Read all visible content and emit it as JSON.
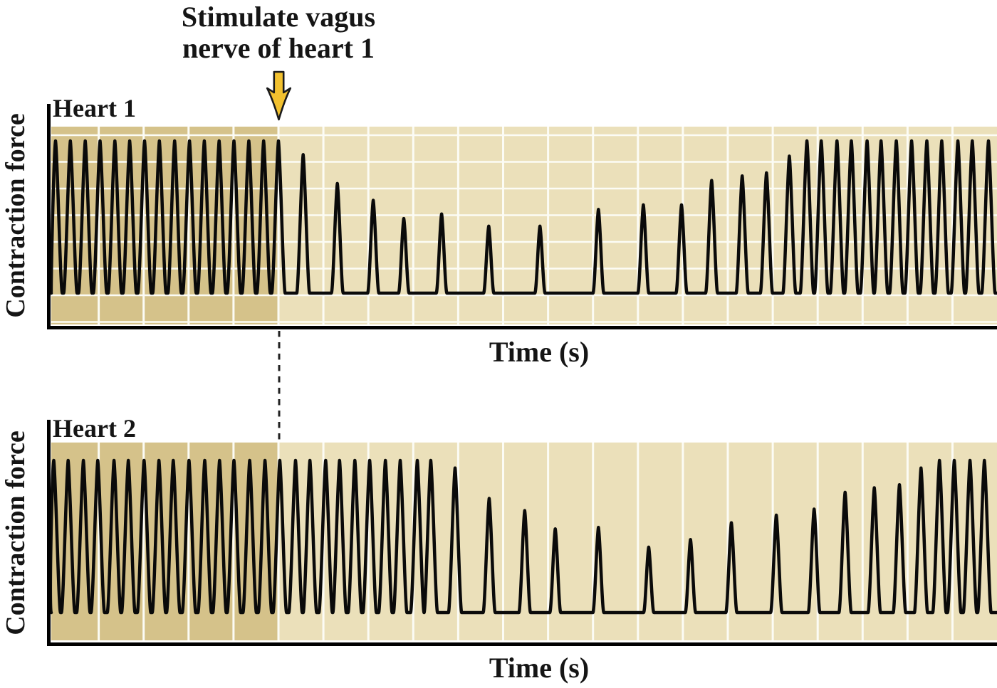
{
  "figure": {
    "annotation": {
      "line1": "Stimulate vagus",
      "line2": "nerve of heart 1"
    },
    "panel1": {
      "title": "Heart 1",
      "ylabel": "Contraction force",
      "xlabel": "Time (s)"
    },
    "panel2": {
      "title": "Heart 2",
      "ylabel": "Contraction force",
      "xlabel": "Time (s)"
    }
  },
  "colors": {
    "canvas_bg": "#ffffff",
    "plot_bg_light": "#ebe0ba",
    "plot_bg_dark": "#d5c28a",
    "gridline": "#fcfcf5",
    "trace": "#0a0a0a",
    "axis": "#000000",
    "text": "#151515",
    "arrow_fill": "#f2c12f",
    "arrow_outline": "#1a1a1a",
    "dashed_line": "#222222"
  },
  "chart_data": [
    {
      "type": "line",
      "title": "Heart 1",
      "xlabel": "Time (s)",
      "ylabel": "Contraction force",
      "x_unit": "s",
      "x_range": [
        0,
        21
      ],
      "y_range": [
        0,
        1.1
      ],
      "amp_unit": "relative to pre-stimulus contraction amplitude (0-1)",
      "grid": {
        "vertical_divisions_s": 1,
        "horizontal_gridlines": true
      },
      "stimulus": {
        "time_s": 5,
        "label": "Stimulate vagus nerve of heart 1",
        "marker": "down-arrow"
      },
      "pre_stimulus_shading_s": [
        0,
        5
      ],
      "spikes_t_amp": [
        [
          0.04,
          1
        ],
        [
          0.37,
          1
        ],
        [
          0.7,
          1
        ],
        [
          1.03,
          1
        ],
        [
          1.36,
          1
        ],
        [
          1.69,
          1
        ],
        [
          2.02,
          1
        ],
        [
          2.35,
          1
        ],
        [
          2.69,
          1
        ],
        [
          3.02,
          1
        ],
        [
          3.35,
          1
        ],
        [
          3.68,
          1
        ],
        [
          4.01,
          1
        ],
        [
          4.34,
          1
        ],
        [
          4.67,
          1
        ],
        [
          5.0,
          1
        ],
        [
          5.55,
          0.91
        ],
        [
          6.31,
          0.72
        ],
        [
          7.11,
          0.61
        ],
        [
          7.79,
          0.49
        ],
        [
          8.63,
          0.52
        ],
        [
          9.68,
          0.44
        ],
        [
          10.82,
          0.44
        ],
        [
          12.12,
          0.55
        ],
        [
          13.12,
          0.58
        ],
        [
          13.97,
          0.58
        ],
        [
          14.64,
          0.74
        ],
        [
          15.32,
          0.77
        ],
        [
          15.86,
          0.79
        ],
        [
          16.37,
          0.9
        ],
        [
          16.76,
          1
        ],
        [
          17.08,
          1
        ],
        [
          17.43,
          1
        ],
        [
          17.75,
          1
        ],
        [
          18.1,
          1
        ],
        [
          18.41,
          1
        ],
        [
          18.75,
          1
        ],
        [
          19.09,
          1
        ],
        [
          19.43,
          1
        ],
        [
          19.76,
          1
        ],
        [
          20.12,
          1
        ],
        [
          20.44,
          1
        ],
        [
          20.8,
          1
        ]
      ]
    },
    {
      "type": "line",
      "title": "Heart 2",
      "xlabel": "Time (s)",
      "ylabel": "Contraction force",
      "x_unit": "s",
      "x_range": [
        0,
        21
      ],
      "y_range": [
        0,
        1.1
      ],
      "amp_unit": "relative to pre-stimulus contraction amplitude (0-1)",
      "grid": {
        "vertical_divisions_s": 1,
        "horizontal_gridlines": false
      },
      "stimulus": {
        "time_s": 5,
        "label": "dashed line marks stimulation of heart 1 vagus nerve",
        "marker": "dashed-line"
      },
      "pre_stimulus_shading_s": [
        0,
        5
      ],
      "spikes_t_amp": [
        [
          0.0,
          1
        ],
        [
          0.32,
          1
        ],
        [
          0.66,
          1
        ],
        [
          0.98,
          1
        ],
        [
          1.34,
          1
        ],
        [
          1.66,
          1
        ],
        [
          2.01,
          1
        ],
        [
          2.34,
          1
        ],
        [
          2.66,
          1
        ],
        [
          3.01,
          1
        ],
        [
          3.36,
          1
        ],
        [
          3.69,
          1
        ],
        [
          4.01,
          1
        ],
        [
          4.36,
          1
        ],
        [
          4.7,
          1
        ],
        [
          5.03,
          1
        ],
        [
          5.38,
          1
        ],
        [
          5.7,
          1
        ],
        [
          6.05,
          1
        ],
        [
          6.36,
          1
        ],
        [
          6.7,
          1
        ],
        [
          7.03,
          1
        ],
        [
          7.38,
          1
        ],
        [
          7.71,
          1
        ],
        [
          8.09,
          1
        ],
        [
          8.39,
          1
        ],
        [
          8.93,
          0.95
        ],
        [
          9.69,
          0.75
        ],
        [
          10.48,
          0.67
        ],
        [
          11.16,
          0.55
        ],
        [
          12.12,
          0.56
        ],
        [
          13.24,
          0.43
        ],
        [
          14.17,
          0.48
        ],
        [
          15.08,
          0.59
        ],
        [
          16.08,
          0.64
        ],
        [
          16.92,
          0.68
        ],
        [
          17.61,
          0.79
        ],
        [
          18.26,
          0.82
        ],
        [
          18.82,
          0.84
        ],
        [
          19.3,
          0.95
        ],
        [
          19.71,
          1
        ],
        [
          20.04,
          1
        ],
        [
          20.39,
          1
        ],
        [
          20.71,
          1
        ]
      ]
    }
  ]
}
